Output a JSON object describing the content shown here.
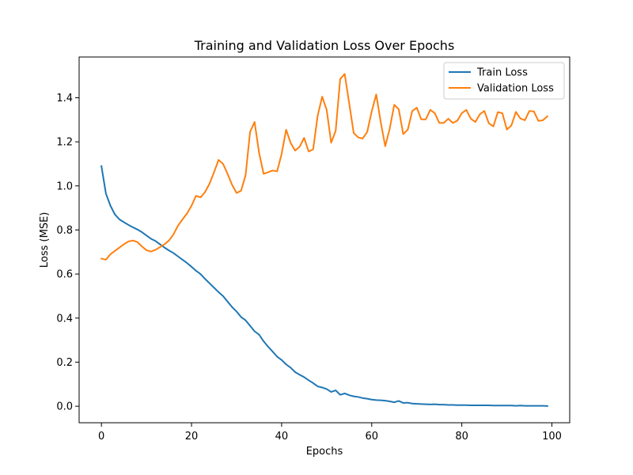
{
  "chart_data": {
    "type": "line",
    "title": "Training and Validation Loss Over Epochs",
    "xlabel": "Epochs",
    "ylabel": "Loss (MSE)",
    "xlim": [
      -4.95,
      103.95
    ],
    "ylim": [
      -0.075,
      1.585
    ],
    "xticks": [
      0,
      20,
      40,
      60,
      80,
      100
    ],
    "xtick_labels": [
      "0",
      "20",
      "40",
      "60",
      "80",
      "100"
    ],
    "yticks": [
      0.0,
      0.2,
      0.4,
      0.6,
      0.8,
      1.0,
      1.2,
      1.4
    ],
    "ytick_labels": [
      "0.0",
      "0.2",
      "0.4",
      "0.6",
      "0.8",
      "1.0",
      "1.2",
      "1.4"
    ],
    "grid": false,
    "legend_position": "top-right",
    "series": [
      {
        "name": "Train Loss",
        "color": "#1f77b4",
        "x": [
          0,
          1,
          2,
          3,
          4,
          5,
          6,
          7,
          8,
          9,
          10,
          11,
          12,
          13,
          14,
          15,
          16,
          17,
          18,
          19,
          20,
          21,
          22,
          23,
          24,
          25,
          26,
          27,
          28,
          29,
          30,
          31,
          32,
          33,
          34,
          35,
          36,
          37,
          38,
          39,
          40,
          41,
          42,
          43,
          44,
          45,
          46,
          47,
          48,
          49,
          50,
          51,
          52,
          53,
          54,
          55,
          56,
          57,
          58,
          59,
          60,
          61,
          62,
          63,
          64,
          65,
          66,
          67,
          68,
          69,
          70,
          71,
          72,
          73,
          74,
          75,
          76,
          77,
          78,
          79,
          80,
          81,
          82,
          83,
          84,
          85,
          86,
          87,
          88,
          89,
          90,
          91,
          92,
          93,
          94,
          95,
          96,
          97,
          98,
          99
        ],
        "y": [
          1.09,
          0.965,
          0.91,
          0.87,
          0.848,
          0.835,
          0.823,
          0.812,
          0.802,
          0.79,
          0.775,
          0.76,
          0.75,
          0.735,
          0.72,
          0.707,
          0.695,
          0.68,
          0.665,
          0.65,
          0.633,
          0.615,
          0.6,
          0.578,
          0.558,
          0.538,
          0.518,
          0.5,
          0.475,
          0.45,
          0.43,
          0.405,
          0.39,
          0.365,
          0.34,
          0.325,
          0.295,
          0.27,
          0.248,
          0.225,
          0.21,
          0.19,
          0.175,
          0.155,
          0.143,
          0.132,
          0.118,
          0.105,
          0.09,
          0.085,
          0.078,
          0.065,
          0.072,
          0.052,
          0.058,
          0.05,
          0.045,
          0.042,
          0.037,
          0.034,
          0.03,
          0.028,
          0.027,
          0.025,
          0.022,
          0.018,
          0.024,
          0.015,
          0.016,
          0.012,
          0.011,
          0.01,
          0.009,
          0.008,
          0.009,
          0.007,
          0.007,
          0.006,
          0.006,
          0.005,
          0.005,
          0.005,
          0.004,
          0.004,
          0.004,
          0.004,
          0.004,
          0.003,
          0.003,
          0.003,
          0.003,
          0.003,
          0.002,
          0.003,
          0.002,
          0.002,
          0.002,
          0.002,
          0.002,
          0.001
        ]
      },
      {
        "name": "Validation Loss",
        "color": "#ff7f0e",
        "x": [
          0,
          1,
          2,
          3,
          4,
          5,
          6,
          7,
          8,
          9,
          10,
          11,
          12,
          13,
          14,
          15,
          16,
          17,
          18,
          19,
          20,
          21,
          22,
          23,
          24,
          25,
          26,
          27,
          28,
          29,
          30,
          31,
          32,
          33,
          34,
          35,
          36,
          37,
          38,
          39,
          40,
          41,
          42,
          43,
          44,
          45,
          46,
          47,
          48,
          49,
          50,
          51,
          52,
          53,
          54,
          55,
          56,
          57,
          58,
          59,
          60,
          61,
          62,
          63,
          64,
          65,
          66,
          67,
          68,
          69,
          70,
          71,
          72,
          73,
          74,
          75,
          76,
          77,
          78,
          79,
          80,
          81,
          82,
          83,
          84,
          85,
          86,
          87,
          88,
          89,
          90,
          91,
          92,
          93,
          94,
          95,
          96,
          97,
          98,
          99
        ],
        "y": [
          0.67,
          0.665,
          0.69,
          0.705,
          0.72,
          0.735,
          0.748,
          0.752,
          0.745,
          0.725,
          0.708,
          0.702,
          0.71,
          0.722,
          0.735,
          0.752,
          0.78,
          0.82,
          0.848,
          0.875,
          0.91,
          0.955,
          0.948,
          0.972,
          1.01,
          1.062,
          1.118,
          1.1,
          1.055,
          1.005,
          0.968,
          0.978,
          1.048,
          1.245,
          1.29,
          1.15,
          1.055,
          1.062,
          1.07,
          1.066,
          1.145,
          1.255,
          1.195,
          1.16,
          1.178,
          1.218,
          1.156,
          1.166,
          1.318,
          1.405,
          1.345,
          1.196,
          1.25,
          1.485,
          1.508,
          1.375,
          1.24,
          1.22,
          1.215,
          1.245,
          1.338,
          1.415,
          1.29,
          1.18,
          1.26,
          1.368,
          1.348,
          1.235,
          1.255,
          1.34,
          1.355,
          1.302,
          1.302,
          1.345,
          1.33,
          1.286,
          1.286,
          1.305,
          1.286,
          1.296,
          1.33,
          1.345,
          1.305,
          1.29,
          1.325,
          1.34,
          1.284,
          1.27,
          1.335,
          1.33,
          1.256,
          1.274,
          1.336,
          1.306,
          1.298,
          1.34,
          1.338,
          1.295,
          1.298,
          1.316
        ]
      }
    ]
  }
}
